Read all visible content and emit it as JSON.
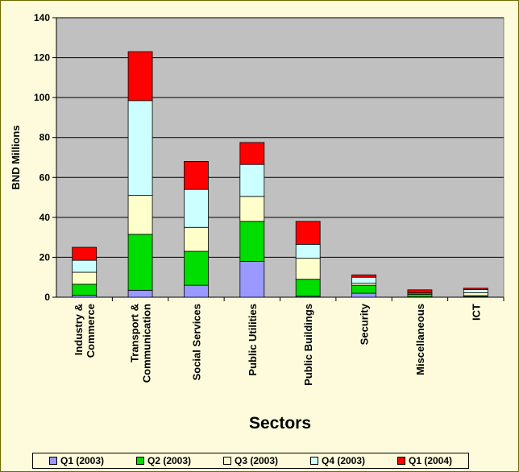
{
  "chart_data": {
    "type": "bar",
    "stacked": true,
    "title": "",
    "xlabel": "Sectors",
    "ylabel": "BND Millions",
    "ylim": [
      0,
      140
    ],
    "yticks": [
      0,
      20,
      40,
      60,
      80,
      100,
      120,
      140
    ],
    "grid": true,
    "legend_position": "bottom",
    "categories": [
      [
        "Industry &",
        "Commerce"
      ],
      [
        "Transport &",
        "Communication"
      ],
      [
        "Social Services"
      ],
      [
        "Public Utilities"
      ],
      [
        "Public Buildings"
      ],
      [
        "Security"
      ],
      [
        "Miscellaneous"
      ],
      [
        "ICT"
      ]
    ],
    "series": [
      {
        "name": "Q1 (2003)",
        "color": "#9999ff",
        "values": [
          1,
          3.5,
          6,
          18,
          0.5,
          2,
          0.2,
          0.3
        ]
      },
      {
        "name": "Q2 (2003)",
        "color": "#00dd00",
        "values": [
          5.5,
          28,
          17,
          20,
          8.5,
          4,
          1.3,
          0.5
        ]
      },
      {
        "name": "Q3 (2003)",
        "color": "#ffffcc",
        "values": [
          6,
          19.5,
          12,
          12.5,
          10.5,
          1,
          0.5,
          1.5
        ]
      },
      {
        "name": "Q4 (2003)",
        "color": "#ccffff",
        "values": [
          6,
          47.5,
          19,
          16,
          7,
          3,
          0.2,
          1.5
        ]
      },
      {
        "name": "Q1 (2004)",
        "color": "#ff0000",
        "values": [
          6.5,
          24.5,
          14,
          11,
          11.5,
          1.2,
          1.5,
          0.7
        ]
      }
    ]
  },
  "colors": {
    "plot_background": "#c0c0c0",
    "page_background": "#fdfbdc"
  }
}
